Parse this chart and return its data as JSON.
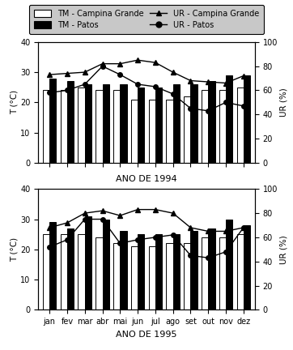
{
  "months": [
    "jan",
    "fev",
    "mar",
    "abr",
    "mai",
    "jun",
    "jul",
    "ago",
    "set",
    "out",
    "nov",
    "dez"
  ],
  "year1": {
    "label": "ANO DE 1994",
    "tm_campina": [
      24,
      24,
      25,
      24,
      24,
      21,
      21,
      21,
      22,
      24,
      24,
      25
    ],
    "tm_patos": [
      28,
      27,
      26,
      26,
      26,
      25,
      25,
      26,
      26,
      27,
      29,
      29
    ],
    "ur_campina": [
      73,
      74,
      75,
      82,
      82,
      85,
      83,
      75,
      68,
      67,
      66,
      72
    ],
    "ur_patos": [
      58,
      60,
      65,
      80,
      73,
      65,
      63,
      57,
      45,
      43,
      50,
      47
    ]
  },
  "year2": {
    "label": "ANO DE 1995",
    "tm_campina": [
      25,
      25,
      25,
      24,
      22,
      21,
      21,
      22,
      22,
      24,
      24,
      25
    ],
    "tm_patos": [
      29,
      27,
      31,
      30,
      26,
      25,
      25,
      25,
      26,
      27,
      30,
      28
    ],
    "ur_campina": [
      68,
      72,
      80,
      82,
      78,
      83,
      83,
      80,
      68,
      65,
      65,
      68
    ],
    "ur_patos": [
      52,
      58,
      75,
      75,
      55,
      58,
      60,
      62,
      45,
      43,
      48,
      68
    ]
  },
  "ylim_temp": [
    0,
    40
  ],
  "ylim_ur": [
    0,
    100
  ],
  "yticks_temp": [
    0,
    10,
    20,
    30,
    40
  ],
  "yticks_ur": [
    0,
    20,
    40,
    60,
    80,
    100
  ],
  "ylabel_temp": "T (°C)",
  "ylabel_ur": "UR (%)",
  "bar_width": 0.38,
  "color_campina": "#ffffff",
  "color_patos": "#000000",
  "fig_bg": "#ffffff",
  "legend_bg": "#c8c8c8"
}
